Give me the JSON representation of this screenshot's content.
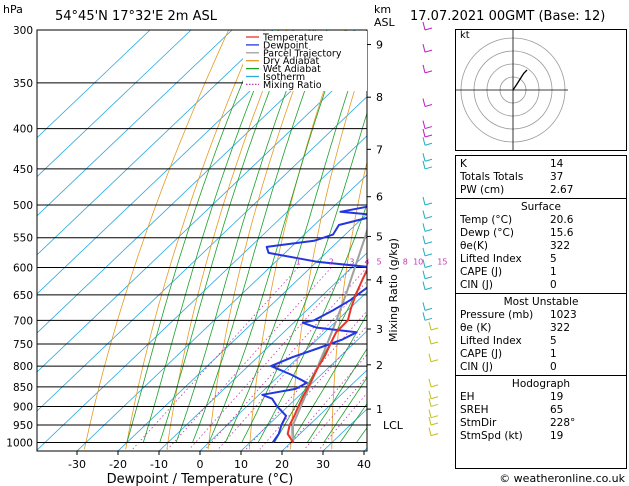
{
  "header": {
    "left_unit": "hPa",
    "location": "54°45'N  17°32'E  2m  ASL",
    "km_label": "km",
    "asl_label": "ASL",
    "datetime": "17.07.2021  00GMT  (Base: 12)"
  },
  "footer": {
    "xlabel": "Dewpoint / Temperature (°C)",
    "mixing_label": "Mixing Ratio (g/kg)",
    "copyright": "© weatheronline.co.uk"
  },
  "chart_data": {
    "type": "line",
    "pressure_levels": [
      300,
      350,
      400,
      450,
      500,
      550,
      600,
      650,
      700,
      750,
      800,
      850,
      900,
      950,
      1000
    ],
    "x_ticks": [
      -30,
      -20,
      -10,
      0,
      10,
      20,
      30,
      40
    ],
    "xlim": [
      -40,
      40
    ],
    "km_ticks": [
      {
        "km": "1",
        "p": 907
      },
      {
        "km": "2",
        "p": 797
      },
      {
        "km": "3",
        "p": 718
      },
      {
        "km": "4",
        "p": 622
      },
      {
        "km": "5",
        "p": 548
      },
      {
        "km": "6",
        "p": 488
      },
      {
        "km": "7",
        "p": 425
      },
      {
        "km": "8",
        "p": 365
      },
      {
        "km": "9",
        "p": 313
      }
    ],
    "lcl": {
      "label": "LCL",
      "p": 950
    },
    "mixing_ratios": [
      "1",
      "2",
      "3",
      "4",
      "5",
      "8",
      "10",
      "15",
      "20",
      "25"
    ],
    "legend": [
      {
        "name": "Temperature",
        "color": "#e8342b",
        "dash": "solid"
      },
      {
        "name": "Dewpoint",
        "color": "#2436e0",
        "dash": "solid"
      },
      {
        "name": "Parcel Trajectory",
        "color": "#a0a0a0",
        "dash": "solid"
      },
      {
        "name": "Dry Adiabat",
        "color": "#e59a24",
        "dash": "solid"
      },
      {
        "name": "Wet Adiabat",
        "color": "#1ba02a",
        "dash": "solid"
      },
      {
        "name": "Isotherm",
        "color": "#2aa8e0",
        "dash": "solid"
      },
      {
        "name": "Mixing Ratio",
        "color": "#c23ab0",
        "dash": "dotted"
      }
    ],
    "series": [
      {
        "name": "Temperature",
        "color": "#e8342b",
        "points": [
          [
            1000,
            20.6
          ],
          [
            975,
            17.0
          ],
          [
            950,
            15.2
          ],
          [
            925,
            14.0
          ],
          [
            900,
            12.6
          ],
          [
            875,
            11.2
          ],
          [
            850,
            10.0
          ],
          [
            825,
            8.6
          ],
          [
            800,
            7.2
          ],
          [
            775,
            6.0
          ],
          [
            750,
            4.4
          ],
          [
            725,
            2.8
          ],
          [
            700,
            2.6
          ],
          [
            675,
            0.2
          ],
          [
            650,
            -2.0
          ],
          [
            625,
            -4.0
          ],
          [
            600,
            -6.0
          ],
          [
            575,
            -8.6
          ],
          [
            550,
            -10.2
          ],
          [
            525,
            -13.0
          ],
          [
            500,
            -15.4
          ],
          [
            475,
            -18.4
          ],
          [
            450,
            -21.6
          ],
          [
            425,
            -25.2
          ],
          [
            400,
            -29.8
          ],
          [
            375,
            -34.0
          ],
          [
            350,
            -38.6
          ],
          [
            325,
            -43.8
          ],
          [
            300,
            -48.4
          ]
        ]
      },
      {
        "name": "Dewpoint",
        "color": "#2436e0",
        "points": [
          [
            1000,
            15.6
          ],
          [
            975,
            14.8
          ],
          [
            950,
            13.2
          ],
          [
            925,
            12.0
          ],
          [
            900,
            7.4
          ],
          [
            880,
            4.2
          ],
          [
            870,
            0.8
          ],
          [
            855,
            7.4
          ],
          [
            840,
            8.6
          ],
          [
            820,
            2.6
          ],
          [
            800,
            -4.4
          ],
          [
            780,
            -1.6
          ],
          [
            760,
            2.4
          ],
          [
            740,
            6.2
          ],
          [
            725,
            7.8
          ],
          [
            715,
            -3.2
          ],
          [
            705,
            -7.8
          ],
          [
            700,
            -5.6
          ],
          [
            680,
            -3.6
          ],
          [
            660,
            -2.0
          ],
          [
            640,
            -1.2
          ],
          [
            610,
            -0.4
          ],
          [
            600,
            -4.6
          ],
          [
            590,
            -20.0
          ],
          [
            575,
            -34.0
          ],
          [
            565,
            -36.0
          ],
          [
            555,
            -26.0
          ],
          [
            545,
            -23.0
          ],
          [
            530,
            -24.0
          ],
          [
            515,
            -17.0
          ],
          [
            510,
            -27.0
          ],
          [
            500,
            -20.0
          ],
          [
            490,
            -23.0
          ],
          [
            480,
            -16.0
          ],
          [
            470,
            -22.0
          ],
          [
            460,
            -26.0
          ],
          [
            450,
            -30.0
          ],
          [
            440,
            -33.0
          ],
          [
            430,
            -32.0
          ],
          [
            420,
            -30.0
          ],
          [
            400,
            -33.0
          ],
          [
            385,
            -37.0
          ],
          [
            370,
            -44.0
          ],
          [
            360,
            -44.5
          ],
          [
            345,
            -46.0
          ],
          [
            330,
            -48.0
          ],
          [
            315,
            -52.0
          ],
          [
            300,
            -53.0
          ]
        ]
      },
      {
        "name": "Parcel Trajectory",
        "color": "#a0a0a0",
        "points": [
          [
            1000,
            20.6
          ],
          [
            950,
            16.0
          ],
          [
            900,
            13.2
          ],
          [
            850,
            10.2
          ],
          [
            800,
            7.0
          ],
          [
            750,
            3.6
          ],
          [
            700,
            -0.2
          ],
          [
            650,
            -4.4
          ],
          [
            600,
            -9.2
          ],
          [
            550,
            -14.4
          ],
          [
            500,
            -20.4
          ],
          [
            450,
            -27.0
          ],
          [
            400,
            -34.6
          ],
          [
            350,
            -43.2
          ],
          [
            300,
            -52.8
          ]
        ]
      }
    ],
    "wind_barbs": [
      300,
      320,
      340,
      375,
      400,
      410,
      420,
      440,
      450,
      500,
      520,
      540,
      560,
      580,
      600,
      620,
      640,
      680,
      700,
      720,
      750,
      790,
      850,
      880,
      900,
      930,
      950,
      980
    ],
    "hodograph": {
      "rings": 4,
      "legend_label": "kt"
    }
  },
  "indices": {
    "rows": [
      {
        "label": "K",
        "value": "14"
      },
      {
        "label": "Totals Totals",
        "value": "37"
      },
      {
        "label": "PW (cm)",
        "value": "2.67"
      }
    ],
    "surface_title": "Surface",
    "surface": [
      {
        "label": "Temp (°C)",
        "value": "20.6"
      },
      {
        "label": "Dewp (°C)",
        "value": "15.6"
      },
      {
        "label": "θe(K)",
        "value": "322"
      },
      {
        "label": "Lifted Index",
        "value": "5"
      },
      {
        "label": "CAPE (J)",
        "value": "1"
      },
      {
        "label": "CIN (J)",
        "value": "0"
      }
    ],
    "unstable_title": "Most Unstable",
    "unstable": [
      {
        "label": "Pressure (mb)",
        "value": "1023"
      },
      {
        "label": "θe (K)",
        "value": "322"
      },
      {
        "label": "Lifted Index",
        "value": "5"
      },
      {
        "label": "CAPE (J)",
        "value": "1"
      },
      {
        "label": "CIN (J)",
        "value": "0"
      }
    ],
    "hodo_title": "Hodograph",
    "hodo": [
      {
        "label": "EH",
        "value": "19"
      },
      {
        "label": "SREH",
        "value": "65"
      },
      {
        "label": "StmDir",
        "value": "228°"
      },
      {
        "label": "StmSpd (kt)",
        "value": "19"
      }
    ]
  }
}
